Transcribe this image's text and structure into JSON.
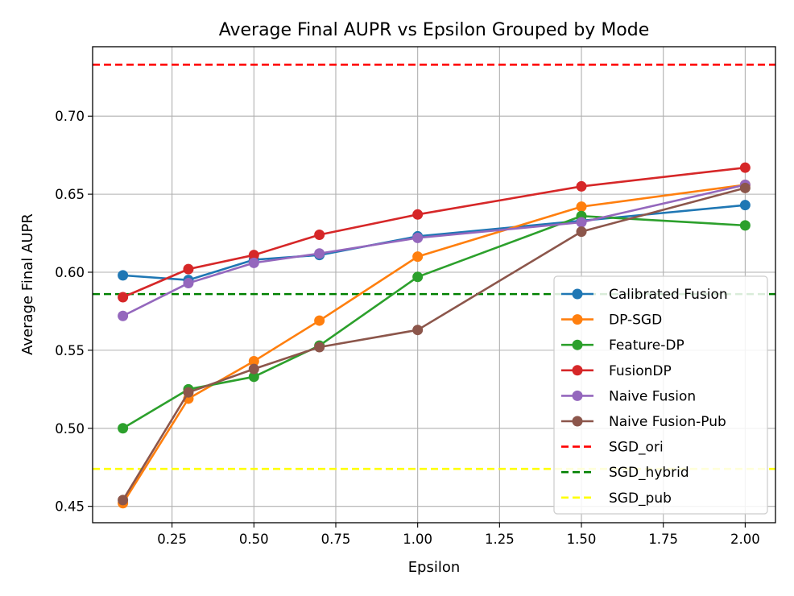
{
  "chart_data": {
    "type": "line",
    "title": "Average Final AUPR vs Epsilon Grouped by Mode",
    "xlabel": "Epsilon",
    "ylabel": "Average Final AUPR",
    "xlim": [
      0.0075,
      2.0925
    ],
    "ylim": [
      0.4395,
      0.7445
    ],
    "grid": true,
    "legend_position": "center-right",
    "x_ticks": [
      0.25,
      0.5,
      0.75,
      1.0,
      1.25,
      1.5,
      1.75,
      2.0
    ],
    "x_tick_labels": [
      "0.25",
      "0.50",
      "0.75",
      "1.00",
      "1.25",
      "1.50",
      "1.75",
      "2.00"
    ],
    "y_ticks": [
      0.45,
      0.5,
      0.55,
      0.6,
      0.65,
      0.7
    ],
    "y_tick_labels": [
      "0.45",
      "0.50",
      "0.55",
      "0.60",
      "0.65",
      "0.70"
    ],
    "x": [
      0.1,
      0.3,
      0.5,
      0.7,
      1.0,
      1.5,
      2.0
    ],
    "series": [
      {
        "name": "Calibrated Fusion",
        "color": "#1f77b4",
        "values": [
          0.598,
          0.595,
          0.608,
          0.611,
          0.623,
          0.633,
          0.643
        ]
      },
      {
        "name": "DP-SGD",
        "color": "#ff7f0e",
        "values": [
          0.452,
          0.519,
          0.543,
          0.569,
          0.61,
          0.642,
          0.656
        ]
      },
      {
        "name": "Feature-DP",
        "color": "#2ca02c",
        "values": [
          0.5,
          0.525,
          0.533,
          0.553,
          0.597,
          0.636,
          0.63
        ]
      },
      {
        "name": "FusionDP",
        "color": "#d62728",
        "values": [
          0.584,
          0.602,
          0.611,
          0.624,
          0.637,
          0.655,
          0.667
        ]
      },
      {
        "name": "Naive Fusion",
        "color": "#9467bd",
        "values": [
          0.572,
          0.593,
          0.606,
          0.612,
          0.622,
          0.632,
          0.656
        ]
      },
      {
        "name": "Naive Fusion-Pub",
        "color": "#8c564b",
        "values": [
          0.454,
          0.523,
          0.538,
          0.552,
          0.563,
          0.626,
          0.654
        ]
      }
    ],
    "reference_lines": [
      {
        "name": "SGD_ori",
        "color": "#ff0000",
        "value": 0.733
      },
      {
        "name": "SGD_hybrid",
        "color": "#008000",
        "value": 0.586
      },
      {
        "name": "SGD_pub",
        "color": "#ffff00",
        "value": 0.474
      }
    ]
  }
}
